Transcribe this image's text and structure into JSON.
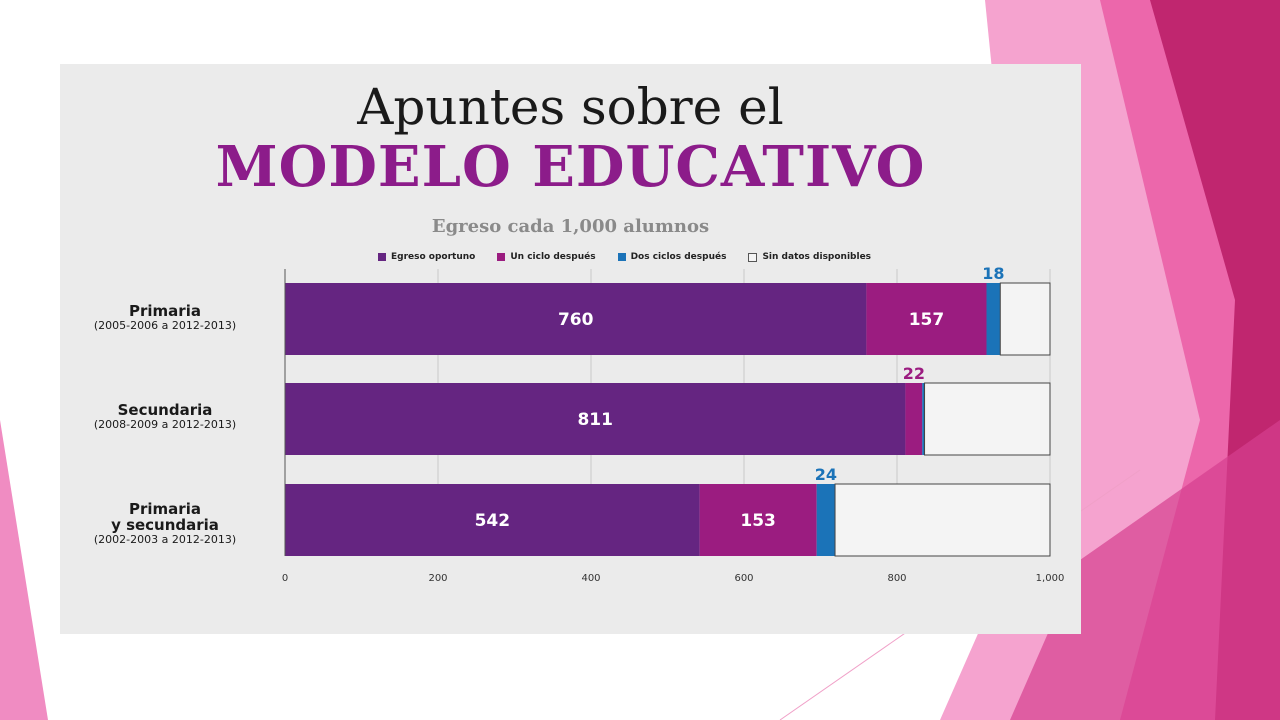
{
  "colors": {
    "panel": "#ebebeb",
    "title_dark": "#1a1a1a",
    "title_accent": "#8c1c8a",
    "subtitle": "#8a8a8a",
    "pink_light": "#f5a3cf",
    "pink_mid": "#e8539f",
    "pink_deep": "#c0266f"
  },
  "header": {
    "title_line1": "Apuntes sobre el",
    "title_line2": "MODELO EDUCATIVO"
  },
  "chart_data": {
    "type": "bar",
    "orientation": "horizontal",
    "stacked": true,
    "title": "Egreso cada 1,000 alumnos",
    "xlim": [
      0,
      1000
    ],
    "xticks": [
      "0",
      "200",
      "400",
      "600",
      "800",
      "1,000"
    ],
    "grid": true,
    "legend_position": "top",
    "categories": [
      {
        "name": "Primaria",
        "period": "(2005-2006 a 2012-2013)"
      },
      {
        "name": "Secundaria",
        "period": "(2008-2009 a 2012-2013)"
      },
      {
        "name": "Primaria\ny secundaria",
        "period": "(2002-2003 a 2012-2013)"
      }
    ],
    "series": [
      {
        "name": "Egreso oportuno",
        "color": "#652581",
        "values": [
          760,
          811,
          542
        ],
        "labels": [
          "760",
          "811",
          "542"
        ],
        "label_color": "#ffffff"
      },
      {
        "name": "Un ciclo después",
        "color": "#9b1c80",
        "values": [
          157,
          22,
          153
        ],
        "labels": [
          "157",
          "22",
          "153"
        ],
        "label_color": "#ffffff",
        "outside_color": "#9b1c80"
      },
      {
        "name": "Dos ciclos después",
        "color": "#1b73b8",
        "values": [
          18,
          3,
          24
        ],
        "labels": [
          "18",
          "",
          "24"
        ],
        "label_color": "#1b73b8"
      },
      {
        "name": "Sin datos disponibles",
        "color": "#f4f4f4",
        "values": [
          65,
          164,
          281
        ],
        "labels": [
          "",
          "",
          ""
        ]
      }
    ]
  }
}
